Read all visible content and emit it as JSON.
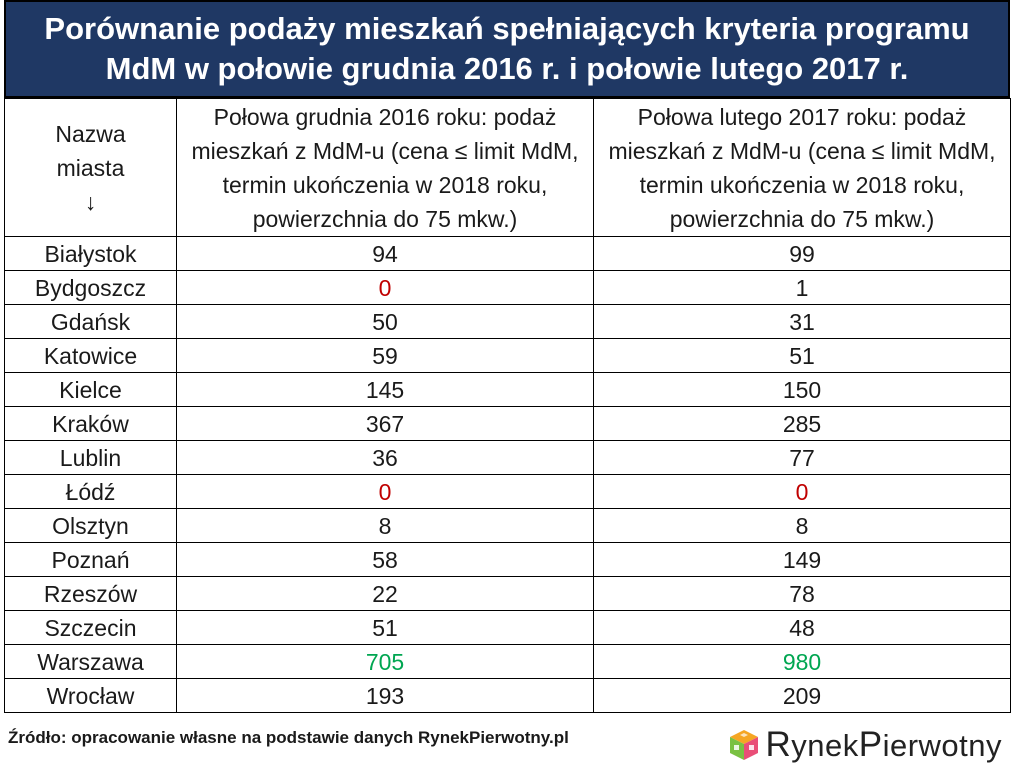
{
  "title": {
    "line1": "Porównanie podaży mieszkań spełniających kryteria programu",
    "line2": "MdM w połowie grudnia 2016 r. i połowie lutego 2017 r."
  },
  "table": {
    "headers": {
      "city_line1": "Nazwa",
      "city_line2": "miasta",
      "city_arrow": "↓",
      "december": "Połowa grudnia 2016 roku: podaż mieszkań z MdM-u (cena ≤ limit MdM, termin ukończenia w 2018 roku, powierzchnia do 75 mkw.)",
      "february": "Połowa lutego 2017 roku: podaż mieszkań z MdM-u (cena ≤ limit MdM, termin ukończenia w 2018 roku, powierzchnia do 75 mkw.)"
    }
  },
  "chart_data": {
    "type": "table",
    "title": "Porównanie podaży mieszkań spełniających kryteria programu MdM w połowie grudnia 2016 r. i połowie lutego 2017 r.",
    "columns": [
      "Nazwa miasta",
      "Połowa grudnia 2016 roku: podaż mieszkań z MdM-u (cena ≤ limit MdM, termin ukończenia w 2018 roku, powierzchnia do 75 mkw.)",
      "Połowa lutego 2017 roku: podaż mieszkań z MdM-u (cena ≤ limit MdM, termin ukończenia w 2018 roku, powierzchnia do 75 mkw.)"
    ],
    "rows": [
      {
        "city": "Białystok",
        "december": "94",
        "february": "99"
      },
      {
        "city": "Bydgoszcz",
        "december": "0",
        "february": "1"
      },
      {
        "city": "Gdańsk",
        "december": "50",
        "february": "31"
      },
      {
        "city": "Katowice",
        "december": "59",
        "february": "51"
      },
      {
        "city": "Kielce",
        "december": "145",
        "february": "150"
      },
      {
        "city": "Kraków",
        "december": "367",
        "february": "285"
      },
      {
        "city": "Lublin",
        "december": "36",
        "february": "77"
      },
      {
        "city": "Łódź",
        "december": "0",
        "february": "0"
      },
      {
        "city": "Olsztyn",
        "december": "8",
        "february": "8"
      },
      {
        "city": "Poznań",
        "december": "58",
        "february": "149"
      },
      {
        "city": "Rzeszów",
        "december": "22",
        "february": "78"
      },
      {
        "city": "Szczecin",
        "december": "51",
        "february": "48"
      },
      {
        "city": "Warszawa",
        "december": "705",
        "february": "980"
      },
      {
        "city": "Wrocław",
        "december": "193",
        "february": "209"
      }
    ],
    "highlight_colors": {
      "zero": "#c00000",
      "max": "#00a651",
      "default": "#1a1a1a"
    }
  },
  "colors": {
    "title_background": "#1f3864",
    "title_text": "#ffffff"
  },
  "footer": {
    "source": "Źródło: opracowanie własne na podstawie danych RynekPierwotny.pl"
  },
  "logo": {
    "icon": "cube-logo-icon",
    "part1_cap": "R",
    "part1_rest": "ynek",
    "part2_cap": "P",
    "part2_rest": "ierwotny"
  }
}
